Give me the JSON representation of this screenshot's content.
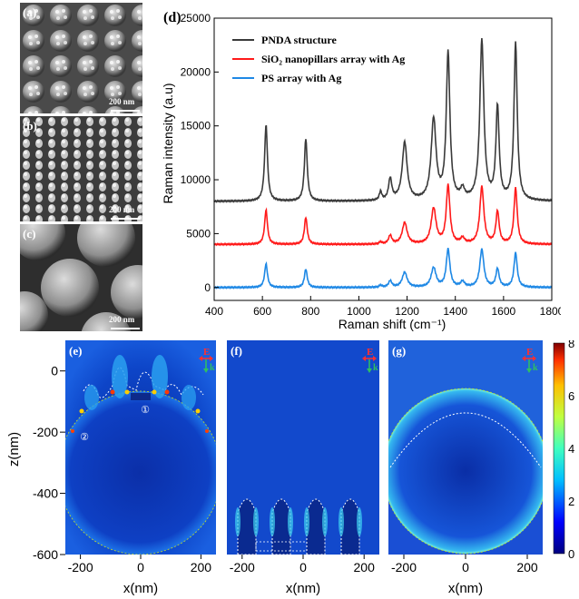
{
  "panels": {
    "a": {
      "tag": "(a)",
      "scale": "200 nm"
    },
    "b": {
      "tag": "(b)",
      "scale": "200 nm"
    },
    "c": {
      "tag": "(c)",
      "scale": "200 nm"
    },
    "d": {
      "tag": "(d)"
    },
    "e": {
      "tag": "(e)",
      "marker1": "①",
      "marker2": "②"
    },
    "f": {
      "tag": "(f)"
    },
    "g": {
      "tag": "(g)"
    }
  },
  "chart_data": [
    {
      "type": "line",
      "xlabel": "Raman shift (cm⁻¹)",
      "ylabel": "Raman intensity (a.u)",
      "xlim": [
        400,
        1800
      ],
      "ylim": [
        -1200,
        25000
      ],
      "xticks": [
        400,
        600,
        800,
        1000,
        1200,
        1400,
        1600,
        1800
      ],
      "yticks": [
        0,
        5000,
        10000,
        15000,
        20000,
        25000
      ],
      "legend_position": "top-left",
      "peaks_x": [
        615,
        780,
        1090,
        1130,
        1190,
        1310,
        1370,
        1430,
        1510,
        1575,
        1650
      ],
      "series": [
        {
          "name": "PNDA structure",
          "color": "#3a3a3a",
          "baseline": 8000,
          "peak_y": [
            15100,
            13800,
            8800,
            10000,
            13400,
            15500,
            21600,
            8900,
            22800,
            16600,
            22600
          ]
        },
        {
          "name": "SiO₂ nanopillars array with Ag",
          "color": "#ff1a1a",
          "baseline": 4000,
          "peak_y": [
            7200,
            6500,
            4200,
            4800,
            6000,
            7300,
            9400,
            4500,
            9300,
            7000,
            9200
          ]
        },
        {
          "name": "PS array with Ag",
          "color": "#1e88e5",
          "baseline": 0,
          "peak_y": [
            2200,
            1700,
            200,
            600,
            1400,
            1800,
            3500,
            500,
            3500,
            1700,
            3200
          ]
        }
      ]
    },
    {
      "type": "heatmap",
      "xlabel": "x(nm)",
      "ylabel": "z(nm)",
      "xticks": [
        -200,
        0,
        200
      ],
      "yticks": [
        0,
        -200,
        -400,
        -600
      ],
      "colorbar_ticks": [
        0,
        2,
        4,
        6,
        8
      ],
      "field_labels": {
        "E": "E",
        "k": "k"
      }
    }
  ]
}
